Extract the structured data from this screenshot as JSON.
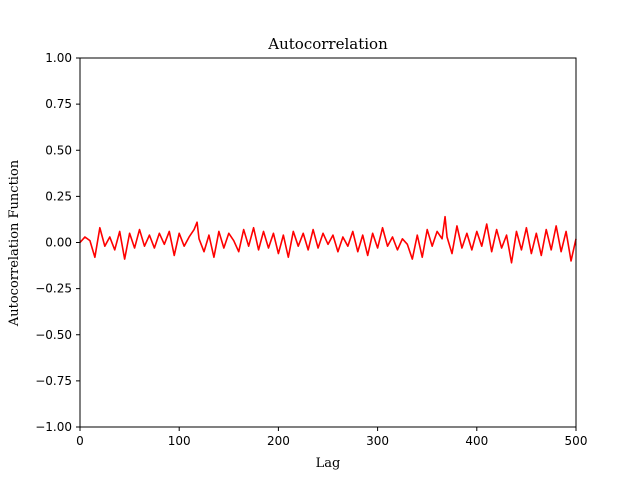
{
  "chart_data": {
    "type": "line",
    "title": "Autocorrelation",
    "xlabel": "Lag",
    "ylabel": "Autocorrelation Function",
    "xlim": [
      0,
      500
    ],
    "ylim": [
      -1.0,
      1.0
    ],
    "xticks": [
      0,
      100,
      200,
      300,
      400,
      500
    ],
    "xtick_labels": [
      "0",
      "100",
      "200",
      "300",
      "400",
      "500"
    ],
    "yticks": [
      -1.0,
      -0.75,
      -0.5,
      -0.25,
      0.0,
      0.25,
      0.5,
      0.75,
      1.0
    ],
    "ytick_labels": [
      "−1.00",
      "−0.75",
      "−0.50",
      "−0.25",
      "0.00",
      "0.25",
      "0.50",
      "0.75",
      "1.00"
    ],
    "grid": false,
    "series": [
      {
        "color": "#ff0000",
        "x": [
          0,
          5,
          10,
          15,
          20,
          25,
          30,
          35,
          40,
          45,
          50,
          55,
          60,
          65,
          70,
          75,
          80,
          85,
          90,
          95,
          100,
          105,
          110,
          115,
          118,
          120,
          125,
          130,
          135,
          140,
          145,
          150,
          155,
          160,
          165,
          170,
          175,
          180,
          185,
          190,
          195,
          200,
          205,
          210,
          215,
          220,
          225,
          230,
          235,
          240,
          245,
          250,
          255,
          260,
          265,
          270,
          275,
          280,
          285,
          290,
          295,
          300,
          305,
          310,
          315,
          320,
          325,
          330,
          335,
          340,
          345,
          350,
          355,
          360,
          365,
          368,
          370,
          375,
          380,
          385,
          390,
          395,
          400,
          405,
          410,
          415,
          420,
          425,
          430,
          435,
          440,
          445,
          450,
          455,
          460,
          465,
          470,
          475,
          480,
          485,
          490,
          495,
          500
        ],
        "values": [
          0.0,
          0.03,
          0.01,
          -0.08,
          0.08,
          -0.02,
          0.03,
          -0.04,
          0.06,
          -0.09,
          0.05,
          -0.03,
          0.07,
          -0.02,
          0.04,
          -0.03,
          0.05,
          -0.01,
          0.06,
          -0.07,
          0.05,
          -0.02,
          0.03,
          0.07,
          0.11,
          0.02,
          -0.05,
          0.04,
          -0.08,
          0.06,
          -0.03,
          0.05,
          0.01,
          -0.05,
          0.07,
          -0.02,
          0.08,
          -0.04,
          0.06,
          -0.03,
          0.05,
          -0.06,
          0.04,
          -0.08,
          0.06,
          -0.02,
          0.05,
          -0.04,
          0.07,
          -0.03,
          0.05,
          -0.01,
          0.04,
          -0.05,
          0.03,
          -0.02,
          0.06,
          -0.05,
          0.04,
          -0.07,
          0.05,
          -0.03,
          0.08,
          -0.02,
          0.03,
          -0.04,
          0.02,
          -0.01,
          -0.09,
          0.04,
          -0.08,
          0.07,
          -0.02,
          0.06,
          0.02,
          0.14,
          0.03,
          -0.06,
          0.09,
          -0.03,
          0.05,
          -0.04,
          0.06,
          -0.02,
          0.1,
          -0.05,
          0.07,
          -0.03,
          0.04,
          -0.11,
          0.06,
          -0.04,
          0.08,
          -0.06,
          0.05,
          -0.07,
          0.07,
          -0.04,
          0.09,
          -0.05,
          0.06,
          -0.1,
          0.02
        ]
      }
    ]
  }
}
